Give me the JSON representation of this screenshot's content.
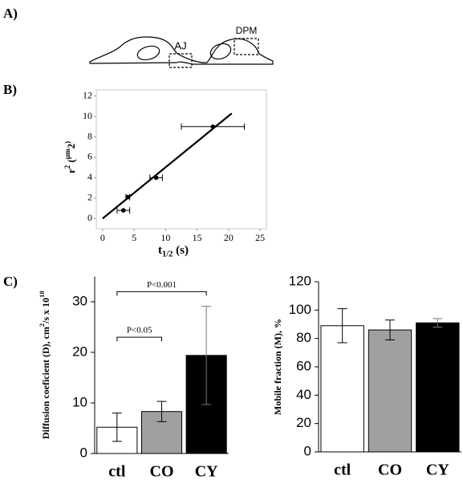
{
  "panels": {
    "a": "A)",
    "b": "B)",
    "c": "C)"
  },
  "diagram": {
    "labels": [
      "AJ",
      "DPM"
    ]
  },
  "chart_data": [
    {
      "type": "scatter",
      "xlabel": [
        "t",
        "1/2",
        " (s)"
      ],
      "ylabel": [
        "r",
        "2",
        " (",
        "μm",
        "2",
        ")"
      ],
      "x": [
        3.3,
        4,
        8.5,
        17.5
      ],
      "y": [
        0.8,
        2.1,
        4,
        9
      ],
      "xerr": [
        1,
        0.3,
        1,
        5
      ],
      "fit": {
        "x": [
          0,
          20.5
        ],
        "y": [
          0,
          10.3
        ]
      },
      "color": "#000000",
      "xlim": [
        -1,
        26
      ],
      "ylim": [
        -1,
        12.6
      ],
      "xticks": [
        0,
        5,
        10,
        15,
        20,
        25
      ],
      "yticks": [
        0,
        2,
        4,
        6,
        8,
        10,
        12
      ]
    },
    {
      "type": "bar",
      "ylabel": [
        "Diffusion coeficient (D), cm",
        "2",
        "/s x 10",
        "10"
      ],
      "categories": [
        "ctl",
        "CO",
        "CY"
      ],
      "values": [
        5.2,
        8.3,
        19.4
      ],
      "errors": [
        2.8,
        2,
        9.7
      ],
      "colors": [
        "#ffffff",
        "#a0a0a0",
        "#000000"
      ],
      "ylim": [
        0,
        35
      ],
      "yticks": [
        0,
        10,
        20,
        30
      ],
      "annotations": [
        {
          "text": "P<0.05",
          "from": 0,
          "to": 1,
          "y": 23
        },
        {
          "text": "P<0.001",
          "from": 0,
          "to": 2,
          "y": 32
        }
      ]
    },
    {
      "type": "bar",
      "ylabel": [
        "Mobile fraction (M), %"
      ],
      "categories": [
        "ctl",
        "CO",
        "CY"
      ],
      "values": [
        89,
        86,
        91
      ],
      "errors": [
        12,
        7,
        3
      ],
      "colors": [
        "#ffffff",
        "#a0a0a0",
        "#000000"
      ],
      "ylim": [
        0,
        120
      ],
      "yticks": [
        0,
        20,
        40,
        60,
        80,
        100,
        120
      ]
    }
  ]
}
